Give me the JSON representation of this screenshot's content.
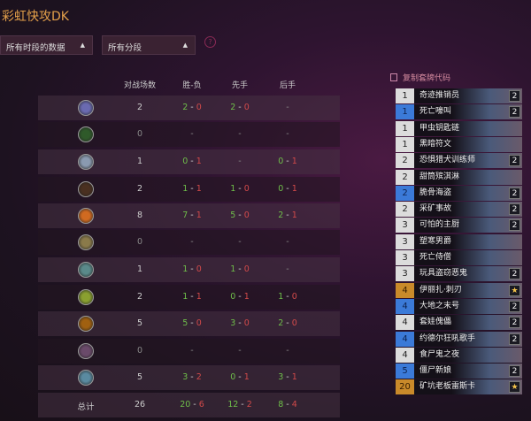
{
  "title": "彩虹快攻DK",
  "filters": {
    "time": "所有时段的数据",
    "rank": "所有分段",
    "help": "?"
  },
  "table": {
    "headers": [
      "对战场数",
      "胜-负",
      "先手",
      "后手"
    ],
    "rows": [
      {
        "icon": "mage-class-icon",
        "color": "#6a6ab0",
        "games": "2",
        "wl": [
          "2",
          "0"
        ],
        "first": [
          "2",
          "0"
        ],
        "second": null
      },
      {
        "icon": "druid-class-icon",
        "color": "#2f5a2a",
        "games": "0",
        "wl": null,
        "first": null,
        "second": null
      },
      {
        "icon": "shaman-class-icon",
        "color": "#8a9ab0",
        "games": "1",
        "wl": [
          "0",
          "1"
        ],
        "first": null,
        "second": [
          "0",
          "1"
        ]
      },
      {
        "icon": "hunter-class-icon",
        "color": "#4a3020",
        "games": "2",
        "wl": [
          "1",
          "1"
        ],
        "first": [
          "1",
          "0"
        ],
        "second": [
          "0",
          "1"
        ]
      },
      {
        "icon": "rogue-class-icon",
        "color": "#d06a20",
        "games": "8",
        "wl": [
          "7",
          "1"
        ],
        "first": [
          "5",
          "0"
        ],
        "second": [
          "2",
          "1"
        ]
      },
      {
        "icon": "paladin-class-icon",
        "color": "#8a7a4a",
        "games": "0",
        "wl": null,
        "first": null,
        "second": null
      },
      {
        "icon": "demon-hunter-class-icon",
        "color": "#5a8a8a",
        "games": "1",
        "wl": [
          "1",
          "0"
        ],
        "first": [
          "1",
          "0"
        ],
        "second": null
      },
      {
        "icon": "warlock-class-icon",
        "color": "#8aa030",
        "games": "2",
        "wl": [
          "1",
          "1"
        ],
        "first": [
          "0",
          "1"
        ],
        "second": [
          "1",
          "0"
        ]
      },
      {
        "icon": "warrior-class-icon",
        "color": "#a06010",
        "games": "5",
        "wl": [
          "5",
          "0"
        ],
        "first": [
          "3",
          "0"
        ],
        "second": [
          "2",
          "0"
        ]
      },
      {
        "icon": "priest-class-icon",
        "color": "#6a4a6a",
        "games": "0",
        "wl": null,
        "first": null,
        "second": null
      },
      {
        "icon": "death-knight-class-icon",
        "color": "#5a8aa0",
        "games": "5",
        "wl": [
          "3",
          "2"
        ],
        "first": [
          "0",
          "1"
        ],
        "second": [
          "3",
          "1"
        ]
      }
    ],
    "total": {
      "label": "总计",
      "games": "26",
      "wl": [
        "20",
        "6"
      ],
      "first": [
        "12",
        "2"
      ],
      "second": [
        "8",
        "4"
      ]
    },
    "empty": "-"
  },
  "deck": {
    "copy_label": "复制套牌代码",
    "cards": [
      {
        "cost": "1",
        "rarity": "common",
        "name": "奇迹推销员",
        "count": "2"
      },
      {
        "cost": "1",
        "rarity": "rare",
        "name": "死亡嚎叫",
        "count": "2"
      },
      {
        "cost": "1",
        "rarity": "common",
        "name": "甲虫钥匙链",
        "count": ""
      },
      {
        "cost": "1",
        "rarity": "common",
        "name": "黑暗符文",
        "count": ""
      },
      {
        "cost": "2",
        "rarity": "common",
        "name": "恐惧猎犬训练师",
        "count": "2"
      },
      {
        "cost": "2",
        "rarity": "common",
        "name": "甜筒殡淇淋",
        "count": ""
      },
      {
        "cost": "2",
        "rarity": "rare",
        "name": "脆骨海盗",
        "count": "2"
      },
      {
        "cost": "2",
        "rarity": "common",
        "name": "采矿事故",
        "count": "2"
      },
      {
        "cost": "3",
        "rarity": "common",
        "name": "可怕的主厨",
        "count": "2"
      },
      {
        "cost": "3",
        "rarity": "common",
        "name": "塑寒男爵",
        "count": ""
      },
      {
        "cost": "3",
        "rarity": "common",
        "name": "死亡侍僧",
        "count": ""
      },
      {
        "cost": "3",
        "rarity": "common",
        "name": "玩具盗窃恶鬼",
        "count": "2"
      },
      {
        "cost": "4",
        "rarity": "legendary",
        "name": "伊丽扎·刺刃",
        "count": "★"
      },
      {
        "cost": "4",
        "rarity": "rare",
        "name": "大地之末号",
        "count": "2"
      },
      {
        "cost": "4",
        "rarity": "common",
        "name": "套娃傀儡",
        "count": "2"
      },
      {
        "cost": "4",
        "rarity": "rare",
        "name": "约德尔狂吼歌手",
        "count": "2"
      },
      {
        "cost": "4",
        "rarity": "common",
        "name": "食尸鬼之夜",
        "count": ""
      },
      {
        "cost": "5",
        "rarity": "rare",
        "name": "僵尸新娘",
        "count": "2"
      },
      {
        "cost": "20",
        "rarity": "legendary",
        "name": "矿坑老板雷斯卡",
        "count": "★"
      }
    ]
  }
}
